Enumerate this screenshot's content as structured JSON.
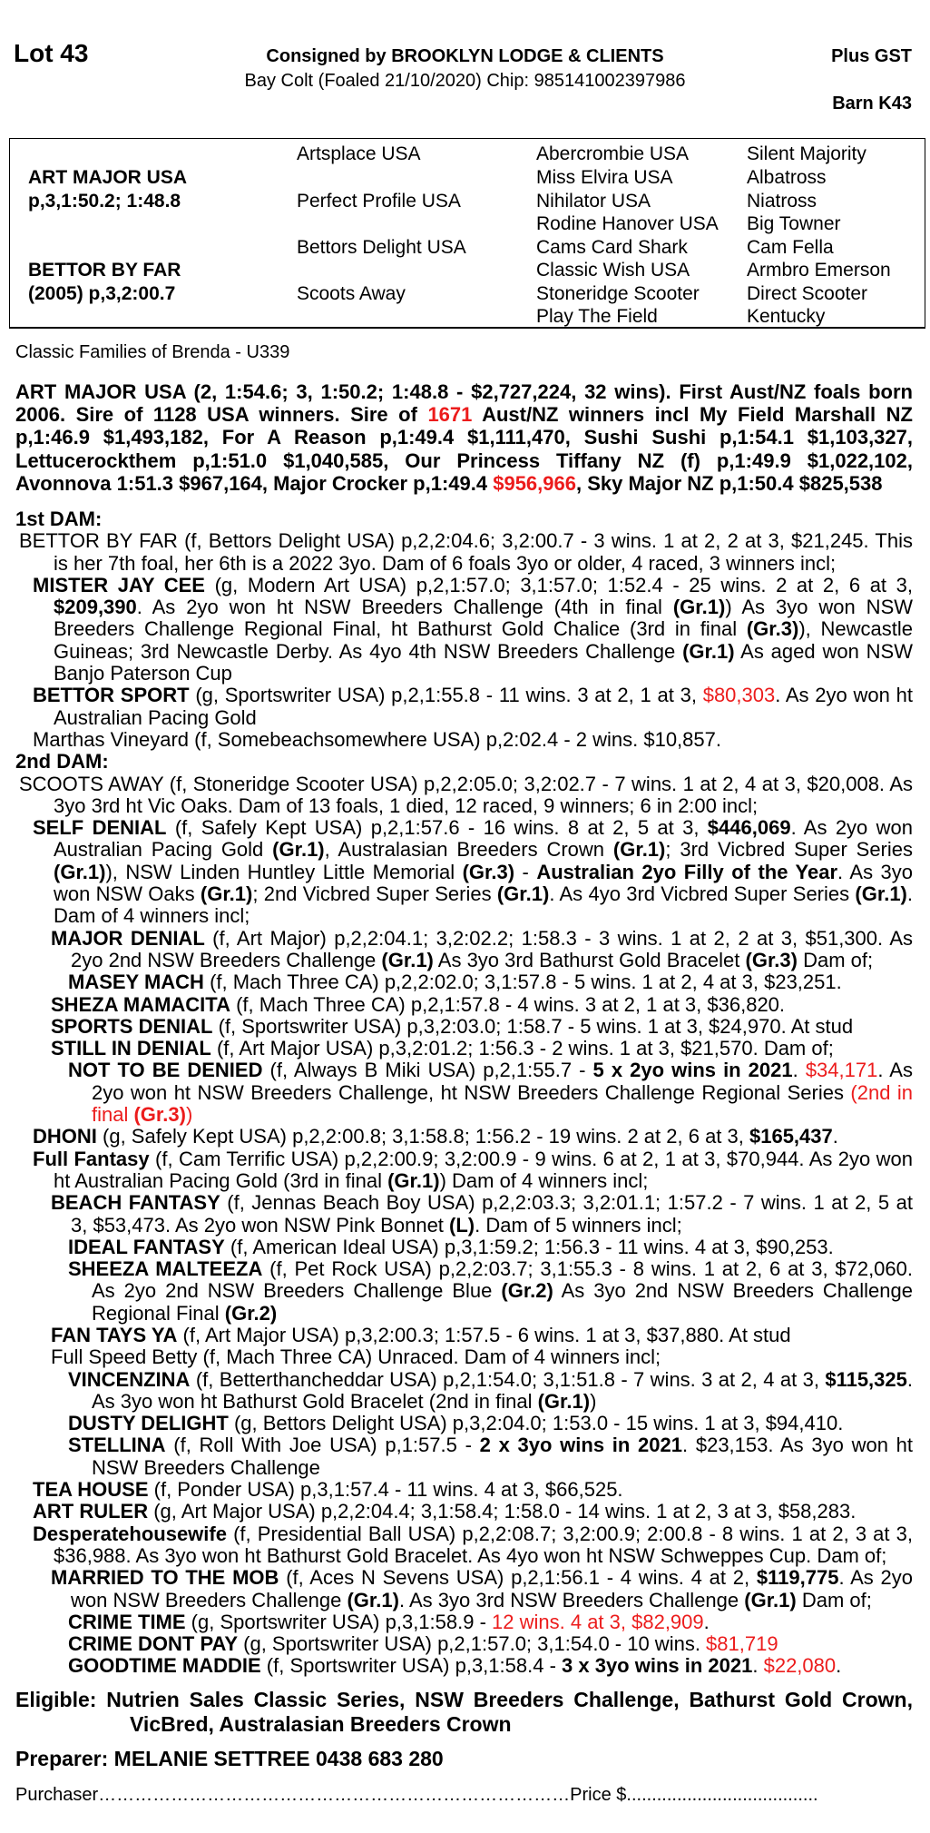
{
  "header": {
    "lot": "Lot 43",
    "consigned": "Consigned by BROOKLYN LODGE & CLIENTS",
    "horse": "Bay Colt (Foaled 21/10/2020) Chip: 985141002397986",
    "gst": "Plus  GST",
    "barn": "Barn K43"
  },
  "pedigree_table": {
    "sire": {
      "name": "ART MAJOR USA",
      "record": "p,3,1:50.2; 1:48.8"
    },
    "dam": {
      "name": "BETTOR BY FAR",
      "record": "(2005) p,3,2:00.7"
    },
    "gen2": [
      "Artsplace USA",
      "Perfect Profile USA",
      "Bettors Delight USA",
      "Scoots Away"
    ],
    "gen3": [
      "Abercrombie USA",
      "Miss Elvira USA",
      "Nihilator USA",
      "Rodine Hanover USA",
      "Cams Card Shark",
      "Classic Wish USA",
      "Stoneridge Scooter",
      "Play The Field"
    ],
    "gen4": [
      "Silent Majority",
      "Albatross",
      "Niatross",
      "Big Towner",
      "Cam Fella",
      "Armbro Emerson",
      "Direct Scooter",
      "Kentucky"
    ]
  },
  "family": "Classic Families of Brenda - U339",
  "sire_para": [
    {
      "t": "ART MAJOR USA (2, 1:54.6; 3, 1:50.2; 1:48.8 - $2,727,224, 32 wins). First Aust/NZ foals born 2006. Sire of 1128 USA winners. Sire of ",
      "s": "b"
    },
    {
      "t": "1671",
      "s": "rb"
    },
    {
      "t": " Aust/NZ winners incl My Field Marshall NZ p,1:46.9 $1,493,182, For A Reason p,1:49.4 $1,111,470, Sushi Sushi p,1:54.1 $1,103,327, Lettucerockthem p,1:51.0 $1,040,585, Our Princess Tiffany NZ (f) p,1:49.9 $1,022,102, Avonnova 1:51.3 $967,164, Major Crocker p,1:49.4 ",
      "s": "b"
    },
    {
      "t": "$956,966",
      "s": "rb"
    },
    {
      "t": ", Sky Major NZ p,1:50.4 $825,538",
      "s": "b"
    }
  ],
  "pedigree": [
    {
      "lv": "h",
      "segs": [
        {
          "t": "1st DAM:",
          "s": "b"
        }
      ]
    },
    {
      "lv": "0",
      "segs": [
        {
          "t": "BETTOR BY FAR (f, Bettors Delight USA) p,2,2:04.6; 3,2:00.7 - 3 wins. 1 at 2, 2 at 3, $21,245. This is her 7th foal, her 6th is a 2022 3yo. Dam of 6 foals 3yo or older, 4 raced, 3 winners incl;",
          "s": ""
        }
      ]
    },
    {
      "lv": "1",
      "segs": [
        {
          "t": "MISTER JAY CEE",
          "s": "b"
        },
        {
          "t": " (g, Modern Art USA) p,2,1:57.0; 3,1:57.0; 1:52.4 - 25 wins. 2 at 2, 6 at 3, ",
          "s": ""
        },
        {
          "t": "$209,390",
          "s": "b"
        },
        {
          "t": ". As 2yo won ht NSW Breeders Challenge (4th in final ",
          "s": ""
        },
        {
          "t": "(Gr.1)",
          "s": "b"
        },
        {
          "t": ") As 3yo won NSW Breeders Challenge Regional Final, ht Bathurst Gold Chalice (3rd in final ",
          "s": ""
        },
        {
          "t": "(Gr.3)",
          "s": "b"
        },
        {
          "t": "), Newcastle Guineas; 3rd Newcastle Derby. As 4yo 4th NSW Breeders Challenge ",
          "s": ""
        },
        {
          "t": "(Gr.1)",
          "s": "b"
        },
        {
          "t": " As aged won NSW Banjo Paterson Cup",
          "s": ""
        }
      ]
    },
    {
      "lv": "1",
      "segs": [
        {
          "t": "BETTOR SPORT",
          "s": "b"
        },
        {
          "t": " (g, Sportswriter USA) p,2,1:55.8 - 11 wins. 3 at 2, 1 at 3, ",
          "s": ""
        },
        {
          "t": "$80,303",
          "s": "r"
        },
        {
          "t": ". As 2yo won ht Australian Pacing Gold",
          "s": ""
        }
      ]
    },
    {
      "lv": "1",
      "segs": [
        {
          "t": "Marthas Vineyard (f, Somebeachsomewhere USA) p,2:02.4 - 2 wins. $10,857.",
          "s": ""
        }
      ]
    },
    {
      "lv": "h",
      "segs": [
        {
          "t": "2nd DAM:",
          "s": "b"
        }
      ]
    },
    {
      "lv": "0",
      "segs": [
        {
          "t": "SCOOTS AWAY (f, Stoneridge Scooter USA) p,2,2:05.0; 3,2:02.7 - 7 wins. 1 at 2, 4 at 3, $20,008. As 3yo 3rd ht Vic Oaks. Dam of 13 foals, 1 died, 12 raced, 9 winners; 6 in 2:00 incl;",
          "s": ""
        }
      ]
    },
    {
      "lv": "1",
      "segs": [
        {
          "t": "SELF DENIAL",
          "s": "b"
        },
        {
          "t": " (f, Safely Kept USA) p,2,1:57.6 - 16 wins. 8 at 2, 5 at 3, ",
          "s": ""
        },
        {
          "t": "$446,069",
          "s": "b"
        },
        {
          "t": ". As 2yo won Australian Pacing Gold ",
          "s": ""
        },
        {
          "t": "(Gr.1)",
          "s": "b"
        },
        {
          "t": ", Australasian Breeders Crown  ",
          "s": ""
        },
        {
          "t": "(Gr.1)",
          "s": "b"
        },
        {
          "t": "; 3rd Vicbred Super Series ",
          "s": ""
        },
        {
          "t": "(Gr.1)",
          "s": "b"
        },
        {
          "t": "), NSW Linden Huntley Little Memorial ",
          "s": ""
        },
        {
          "t": "(Gr.3)",
          "s": "b"
        },
        {
          "t": " - ",
          "s": ""
        },
        {
          "t": "Australian 2yo Filly of the Year",
          "s": "b"
        },
        {
          "t": ". As 3yo won NSW Oaks ",
          "s": ""
        },
        {
          "t": "(Gr.1)",
          "s": "b"
        },
        {
          "t": "; 2nd Vicbred Super Series ",
          "s": ""
        },
        {
          "t": "(Gr.1)",
          "s": "b"
        },
        {
          "t": ". As 4yo 3rd Vicbred Super Series ",
          "s": ""
        },
        {
          "t": "(Gr.1)",
          "s": "b"
        },
        {
          "t": ". Dam of 4 winners incl;",
          "s": ""
        }
      ]
    },
    {
      "lv": "2",
      "segs": [
        {
          "t": "MAJOR DENIAL",
          "s": "b"
        },
        {
          "t": " (f, Art Major) p,2,2:04.1; 3,2:02.2; 1:58.3 - 3 wins. 1 at 2, 2 at 3, $51,300. As 2yo 2nd NSW Breeders Challenge ",
          "s": ""
        },
        {
          "t": "(Gr.1)",
          "s": "b"
        },
        {
          "t": " As 3yo 3rd Bathurst Gold Bracelet ",
          "s": ""
        },
        {
          "t": "(Gr.3)",
          "s": "b"
        },
        {
          "t": " Dam of;",
          "s": ""
        }
      ]
    },
    {
      "lv": "3",
      "segs": [
        {
          "t": "MASEY MACH",
          "s": "b"
        },
        {
          "t": " (f, Mach Three CA) p,2,2:02.0; 3,1:57.8 - 5 wins. 1 at 2, 4 at 3, $23,251.",
          "s": ""
        }
      ]
    },
    {
      "lv": "2",
      "segs": [
        {
          "t": "SHEZA MAMACITA",
          "s": "b"
        },
        {
          "t": " (f, Mach Three CA) p,2,1:57.8 - 4 wins. 3 at 2, 1 at 3, $36,820.",
          "s": ""
        }
      ]
    },
    {
      "lv": "2",
      "segs": [
        {
          "t": "SPORTS DENIAL",
          "s": "b"
        },
        {
          "t": " (f, Sportswriter USA) p,3,2:03.0; 1:58.7 - 5 wins. 1 at 3, $24,970. At stud",
          "s": ""
        }
      ]
    },
    {
      "lv": "2",
      "segs": [
        {
          "t": "STILL IN DENIAL",
          "s": "b"
        },
        {
          "t": " (f, Art Major USA) p,3,2:01.2; 1:56.3 - 2 wins. 1 at 3, $21,570. Dam of;",
          "s": ""
        }
      ]
    },
    {
      "lv": "3",
      "segs": [
        {
          "t": "NOT TO BE DENIED",
          "s": "b"
        },
        {
          "t": " (f, Always B Miki USA) p,2,1:55.7 - ",
          "s": ""
        },
        {
          "t": "5 x 2yo wins in 2021",
          "s": "b"
        },
        {
          "t": ". ",
          "s": ""
        },
        {
          "t": "$34,171",
          "s": "r"
        },
        {
          "t": ". As 2yo won ht NSW Breeders Challenge, ht NSW Breeders Challenge Regional Series ",
          "s": ""
        },
        {
          "t": "(2nd in final ",
          "s": "r"
        },
        {
          "t": "(Gr.3)",
          "s": "rb"
        },
        {
          "t": ")",
          "s": "r"
        }
      ]
    },
    {
      "lv": "1",
      "segs": [
        {
          "t": "DHONI",
          "s": "b"
        },
        {
          "t": " (g, Safely Kept USA) p,2,2:00.8; 3,1:58.8; 1:56.2 - 19 wins. 2 at 2, 6 at 3, ",
          "s": ""
        },
        {
          "t": "$165,437",
          "s": "b"
        },
        {
          "t": ".",
          "s": ""
        }
      ]
    },
    {
      "lv": "1",
      "segs": [
        {
          "t": "Full Fantasy",
          "s": "b"
        },
        {
          "t": " (f, Cam Terrific USA) p,2,2:00.9; 3,2:00.9 - 9 wins. 6 at 2, 1 at 3, $70,944. As 2yo won ht Australian Pacing Gold (3rd in final ",
          "s": ""
        },
        {
          "t": "(Gr.1)",
          "s": "b"
        },
        {
          "t": ") Dam of 4 winners incl;",
          "s": ""
        }
      ]
    },
    {
      "lv": "2",
      "segs": [
        {
          "t": "BEACH FANTASY",
          "s": "b"
        },
        {
          "t": " (f, Jennas Beach Boy USA) p,2,2:03.3; 3,2:01.1; 1:57.2 - 7 wins. 1 at 2, 5 at 3, $53,473. As 2yo won NSW Pink Bonnet ",
          "s": ""
        },
        {
          "t": "(L)",
          "s": "b"
        },
        {
          "t": ". Dam of 5 winners incl;",
          "s": ""
        }
      ]
    },
    {
      "lv": "3",
      "segs": [
        {
          "t": "IDEAL FANTASY",
          "s": "b"
        },
        {
          "t": " (f, American Ideal USA) p,3,1:59.2; 1:56.3 - 11 wins. 4 at 3, $90,253.",
          "s": ""
        }
      ]
    },
    {
      "lv": "3",
      "segs": [
        {
          "t": "SHEEZA MALTEEZA",
          "s": "b"
        },
        {
          "t": " (f, Pet Rock USA) p,2,2:03.7; 3,1:55.3 - 8 wins. 1 at 2, 6 at 3, $72,060. As 2yo 2nd NSW Breeders Challenge Blue ",
          "s": ""
        },
        {
          "t": "(Gr.2)",
          "s": "b"
        },
        {
          "t": " As 3yo 2nd NSW Breeders Challenge Regional Final ",
          "s": ""
        },
        {
          "t": "(Gr.2)",
          "s": "b"
        }
      ]
    },
    {
      "lv": "2",
      "segs": [
        {
          "t": "FAN TAYS YA",
          "s": "b"
        },
        {
          "t": " (f, Art Major USA) p,3,2:00.3; 1:57.5 - 6 wins. 1 at 3, $37,880. At stud",
          "s": ""
        }
      ]
    },
    {
      "lv": "2",
      "segs": [
        {
          "t": "Full Speed Betty (f, Mach Three CA) Unraced. Dam of 4 winners incl;",
          "s": ""
        }
      ]
    },
    {
      "lv": "3",
      "segs": [
        {
          "t": "VINCENZINA",
          "s": "b"
        },
        {
          "t": " (f, Betterthancheddar USA) p,2,1:54.0; 3,1:51.8 - 7 wins. 3 at 2, 4 at 3, ",
          "s": ""
        },
        {
          "t": "$115,325",
          "s": "b"
        },
        {
          "t": ". As 3yo won ht Bathurst Gold Bracelet (2nd in final ",
          "s": ""
        },
        {
          "t": "(Gr.1)",
          "s": "b"
        },
        {
          "t": ")",
          "s": ""
        }
      ]
    },
    {
      "lv": "3",
      "segs": [
        {
          "t": "DUSTY DELIGHT",
          "s": "b"
        },
        {
          "t": " (g, Bettors Delight USA) p,3,2:04.0; 1:53.0 - 15 wins. 1 at 3, $94,410.",
          "s": ""
        }
      ]
    },
    {
      "lv": "3",
      "segs": [
        {
          "t": "STELLINA",
          "s": "b"
        },
        {
          "t": " (f, Roll With Joe USA) p,1:57.5 - ",
          "s": ""
        },
        {
          "t": "2 x 3yo wins in 2021",
          "s": "b"
        },
        {
          "t": ". $23,153. As 3yo won ht NSW Breeders Challenge",
          "s": ""
        }
      ]
    },
    {
      "lv": "1",
      "segs": [
        {
          "t": "TEA HOUSE",
          "s": "b"
        },
        {
          "t": " (f, Ponder USA) p,3,1:57.4 - 11 wins. 4 at 3, $66,525.",
          "s": ""
        }
      ]
    },
    {
      "lv": "1",
      "segs": [
        {
          "t": "ART RULER",
          "s": "b"
        },
        {
          "t": " (g, Art Major USA) p,2,2:04.4; 3,1:58.4; 1:58.0 - 14 wins. 1 at 2, 3 at 3, $58,283.",
          "s": ""
        }
      ]
    },
    {
      "lv": "1",
      "segs": [
        {
          "t": "Desperatehousewife",
          "s": "b"
        },
        {
          "t": " (f, Presidential Ball USA) p,2,2:08.7; 3,2:00.9; 2:00.8 - 8 wins. 1 at 2, 3 at 3, $36,988. As 3yo won ht Bathurst Gold Bracelet. As 4yo won ht NSW Schweppes Cup. Dam of;",
          "s": ""
        }
      ]
    },
    {
      "lv": "2",
      "segs": [
        {
          "t": "MARRIED TO THE MOB",
          "s": "b"
        },
        {
          "t": " (f, Aces N Sevens USA) p,2,1:56.1 - 4 wins. 4 at 2, ",
          "s": ""
        },
        {
          "t": "$119,775",
          "s": "b"
        },
        {
          "t": ". As 2yo won NSW Breeders Challenge ",
          "s": ""
        },
        {
          "t": "(Gr.1)",
          "s": "b"
        },
        {
          "t": ". As 3yo 3rd NSW Breeders Challenge ",
          "s": ""
        },
        {
          "t": "(Gr.1)",
          "s": "b"
        },
        {
          "t": " Dam of;",
          "s": ""
        }
      ]
    },
    {
      "lv": "3",
      "segs": [
        {
          "t": "CRIME TIME",
          "s": "b"
        },
        {
          "t": " (g, Sportswriter USA) p,3,1:58.9 - ",
          "s": ""
        },
        {
          "t": "12 wins. 4 at 3, $82,909",
          "s": "r"
        },
        {
          "t": ".",
          "s": ""
        }
      ]
    },
    {
      "lv": "3",
      "segs": [
        {
          "t": "CRIME DONT PAY",
          "s": "b"
        },
        {
          "t": " (g, Sportswriter USA) p,2,1:57.0; 3,1:54.0 - 10 wins. ",
          "s": ""
        },
        {
          "t": "$81,719",
          "s": "r"
        }
      ]
    },
    {
      "lv": "3",
      "segs": [
        {
          "t": "GOODTIME MADDIE",
          "s": "b"
        },
        {
          "t": " (f, Sportswriter USA) p,3,1:58.4 - ",
          "s": ""
        },
        {
          "t": "3 x 3yo wins in 2021",
          "s": "b"
        },
        {
          "t": ". ",
          "s": ""
        },
        {
          "t": "$22,080",
          "s": "r"
        },
        {
          "t": ".",
          "s": ""
        }
      ]
    }
  ],
  "eligible": "Eligible: Nutrien Sales Classic Series, NSW Breeders Challenge, Bathurst Gold Crown, VicBred, Australasian Breeders Crown",
  "preparer": "Preparer: MELANIE SETTREE 0438 683 280",
  "purchase": {
    "purchaser_label": "Purchaser",
    "purchaser_dots": "……………………………………………………………………",
    "price_label": "Price $",
    "price_dots": "......................................"
  },
  "colors": {
    "highlight_red": "#ec1c1c",
    "text": "#000000"
  }
}
